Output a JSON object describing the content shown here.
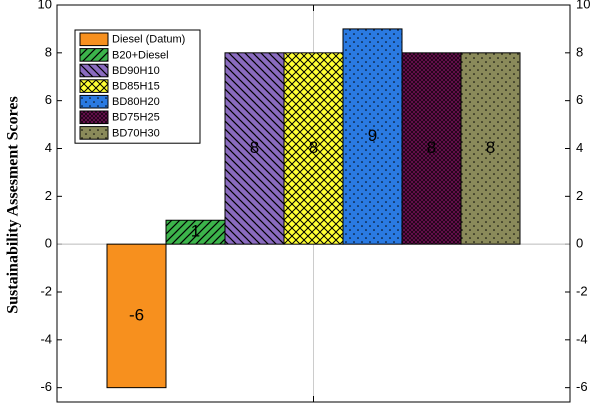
{
  "chart_data": {
    "type": "bar",
    "y_label": "Sustainability Assesment Scores",
    "series": [
      {
        "name": "Diesel (Datum)",
        "color": "#f7901e",
        "pattern": "solid",
        "values": [
          -6
        ]
      },
      {
        "name": "B20+Diesel",
        "color": "#3cb44b",
        "pattern": "diagonal-up",
        "values": [
          1
        ]
      },
      {
        "name": "BD90H10",
        "color": "#8a6bbf",
        "pattern": "diagonal-down",
        "values": [
          8
        ]
      },
      {
        "name": "BD85H15",
        "color": "#ffff33",
        "pattern": "crosshatch",
        "values": [
          8
        ]
      },
      {
        "name": "BD80H20",
        "color": "#2a7ae2",
        "pattern": "dots",
        "values": [
          9
        ]
      },
      {
        "name": "BD75H25",
        "color": "#6a0f4f",
        "pattern": "dense-crosshatch",
        "values": [
          8
        ]
      },
      {
        "name": "BD70H30",
        "color": "#8a8a5a",
        "pattern": "dots",
        "values": [
          8
        ]
      }
    ],
    "ylim": [
      -6.6,
      10
    ],
    "yticks": [
      -6,
      -4,
      -2,
      0,
      2,
      4,
      6,
      8,
      10
    ]
  }
}
